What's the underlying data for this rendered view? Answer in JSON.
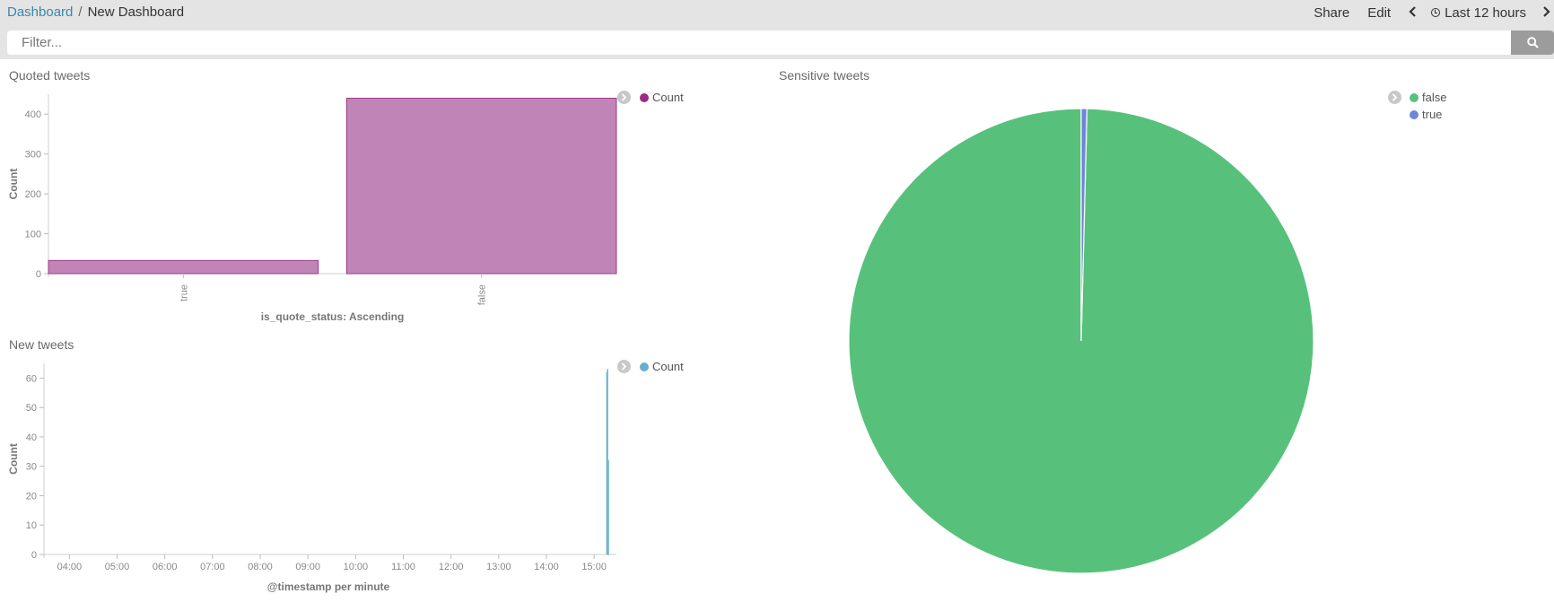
{
  "breadcrumb": {
    "parent": "Dashboard",
    "separator": "/",
    "current": "New Dashboard"
  },
  "topnav": {
    "share": "Share",
    "edit": "Edit",
    "time_label": "Last 12 hours",
    "prev_icon": "chevron-left-icon",
    "next_icon": "chevron-right-icon",
    "clock_icon": "clock-icon"
  },
  "filter": {
    "placeholder": "Filter...",
    "value": "",
    "search_icon": "search-icon"
  },
  "panels": {
    "quoted": {
      "title": "Quoted tweets",
      "legend": [
        "Count"
      ]
    },
    "new": {
      "title": "New tweets",
      "legend": [
        "Count"
      ]
    },
    "sensitive": {
      "title": "Sensitive tweets",
      "legend": [
        "false",
        "true"
      ]
    }
  },
  "colors": {
    "quoted_bar": "#c084b6",
    "quoted_stroke": "#9a3c8c",
    "quoted_legend": "#9c2a88",
    "new_bar": "#96cfdf",
    "new_stroke": "#6ab0c8",
    "new_legend": "#6aaed0",
    "pie_false": "#57c17b",
    "pie_true": "#6f87d8"
  },
  "chart_data": [
    {
      "type": "bar",
      "title": "Quoted tweets",
      "xlabel": "is_quote_status: Ascending",
      "ylabel": "Count",
      "categories": [
        "true",
        "false"
      ],
      "series": [
        {
          "name": "Count",
          "values": [
            33,
            440
          ]
        }
      ],
      "ylim": [
        0,
        450
      ],
      "yticks": [
        0,
        100,
        200,
        300,
        400
      ],
      "grid": false,
      "legend": "top-right"
    },
    {
      "type": "bar",
      "title": "New tweets",
      "xlabel": "@timestamp per minute",
      "ylabel": "Count",
      "xticks": [
        "04:00",
        "05:00",
        "06:00",
        "07:00",
        "08:00",
        "09:00",
        "10:00",
        "11:00",
        "12:00",
        "13:00",
        "14:00",
        "15:00"
      ],
      "series": [
        {
          "name": "Count",
          "points": [
            {
              "time": "15:16",
              "value": 62
            },
            {
              "time": "15:17",
              "value": 63
            },
            {
              "time": "15:18",
              "value": 32
            }
          ]
        }
      ],
      "ylim": [
        0,
        65
      ],
      "yticks": [
        0,
        10,
        20,
        30,
        40,
        50,
        60
      ],
      "grid": false,
      "legend": "top-right"
    },
    {
      "type": "pie",
      "title": "Sensitive tweets",
      "labels": [
        "false",
        "true"
      ],
      "values": [
        99.6,
        0.4
      ],
      "legend": "top-right"
    }
  ]
}
